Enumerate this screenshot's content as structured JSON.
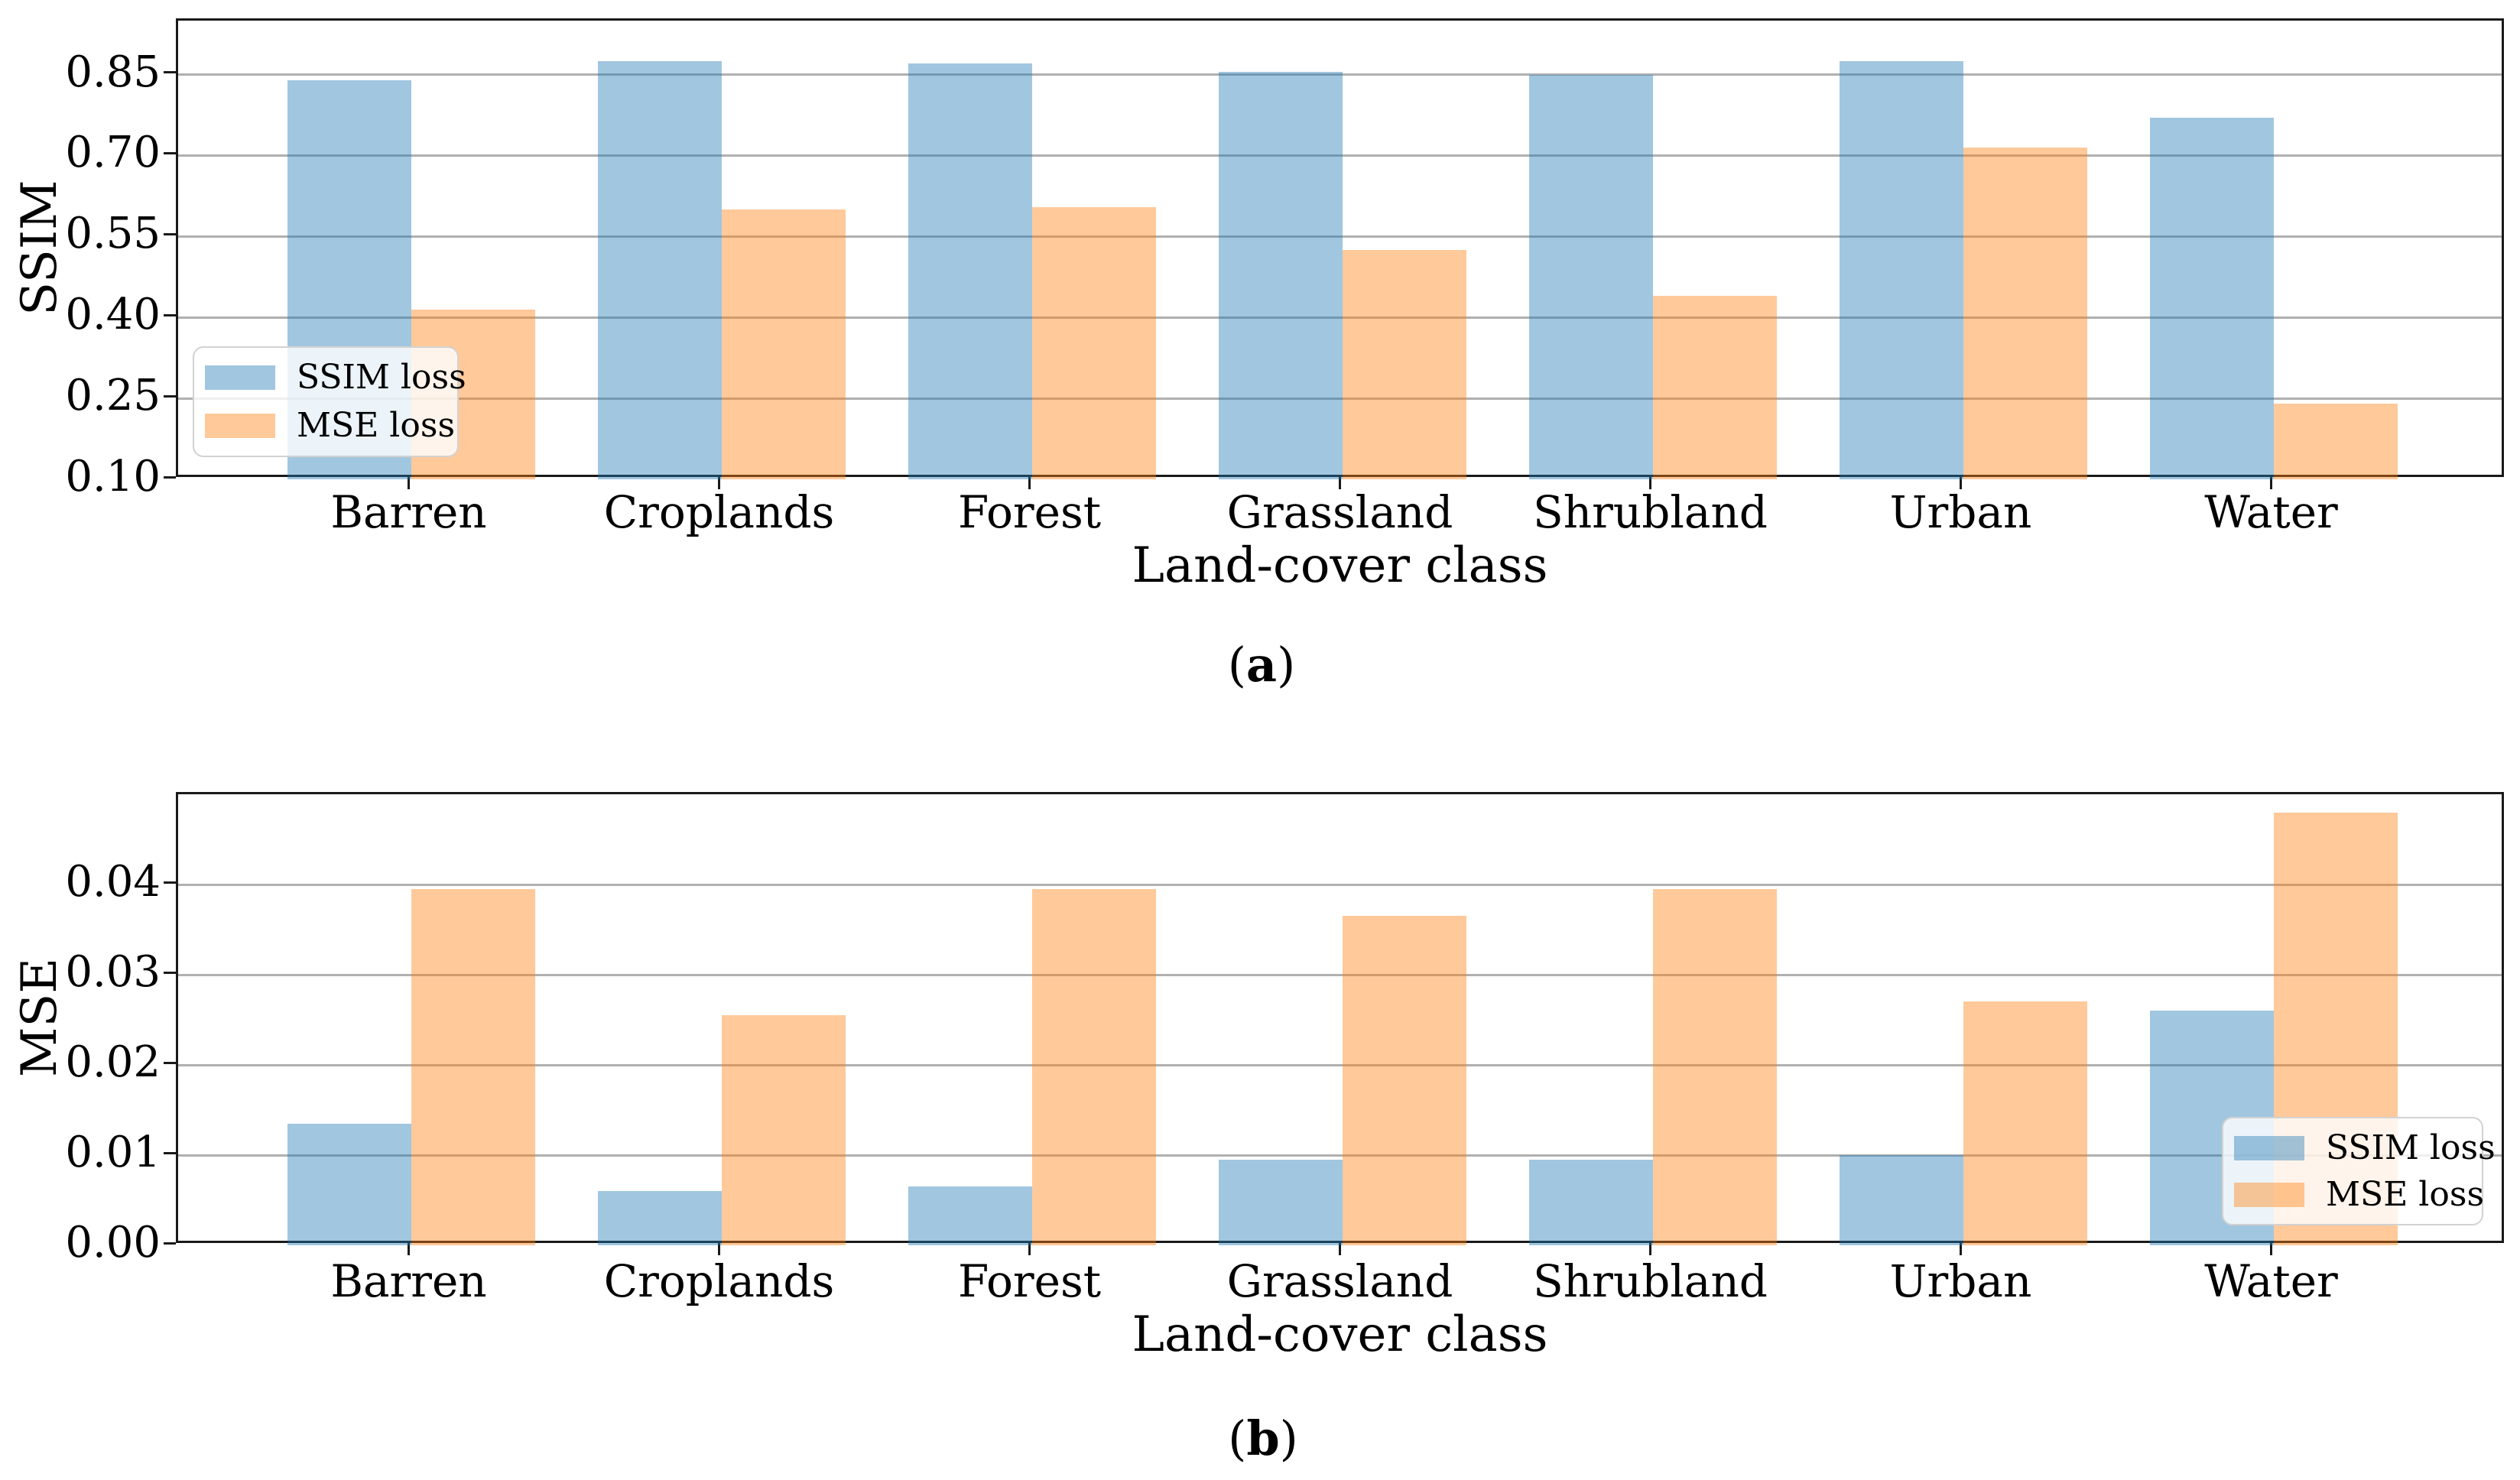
{
  "figure": {
    "background": "#ffffff",
    "panels": [
      "a",
      "b"
    ]
  },
  "colors": {
    "ssim_loss_bar": "rgba(31,119,180,0.42)",
    "mse_loss_bar": "rgba(255,127,14,0.42)",
    "gridline": "#b0b0b0",
    "axis_frame": "#1a1a1a"
  },
  "chart_data": [
    {
      "id": "a",
      "type": "bar",
      "title": "",
      "xlabel": "Land-cover class",
      "ylabel": "SSIM",
      "categories": [
        "Barren",
        "Croplands",
        "Forest",
        "Grassland",
        "Shrubland",
        "Urban",
        "Water"
      ],
      "series": [
        {
          "name": "SSIM loss",
          "values": [
            0.84,
            0.875,
            0.87,
            0.855,
            0.85,
            0.875,
            0.77
          ]
        },
        {
          "name": "MSE loss",
          "values": [
            0.415,
            0.6,
            0.605,
            0.525,
            0.44,
            0.715,
            0.24
          ]
        }
      ],
      "ylim": [
        0.1,
        0.95
      ],
      "yticks": [
        0.1,
        0.25,
        0.4,
        0.55,
        0.7,
        0.85
      ],
      "ytick_labels": [
        "0.10",
        "0.25",
        "0.40",
        "0.55",
        "0.70",
        "0.85"
      ],
      "grid": true,
      "legend_position": "lower-left",
      "legend_entries": [
        "SSIM loss",
        "MSE loss"
      ],
      "caption_pre": "(",
      "caption_letter": "a",
      "caption_post": ")"
    },
    {
      "id": "b",
      "type": "bar",
      "title": "",
      "xlabel": "Land-cover class",
      "ylabel": "MSE",
      "categories": [
        "Barren",
        "Croplands",
        "Forest",
        "Grassland",
        "Shrubland",
        "Urban",
        "Water"
      ],
      "series": [
        {
          "name": "SSIM loss",
          "values": [
            0.0135,
            0.006,
            0.0065,
            0.0095,
            0.0095,
            0.01,
            0.026
          ]
        },
        {
          "name": "MSE loss",
          "values": [
            0.0395,
            0.0255,
            0.0395,
            0.0365,
            0.0395,
            0.027,
            0.048
          ]
        }
      ],
      "ylim": [
        0.0,
        0.05
      ],
      "yticks": [
        0.0,
        0.01,
        0.02,
        0.03,
        0.04
      ],
      "ytick_labels": [
        "0.00",
        "0.01",
        "0.02",
        "0.03",
        "0.04"
      ],
      "grid": true,
      "legend_position": "lower-right",
      "legend_entries": [
        "SSIM loss",
        "MSE loss"
      ],
      "caption_pre": "(",
      "caption_letter": "b",
      "caption_post": ")"
    }
  ]
}
